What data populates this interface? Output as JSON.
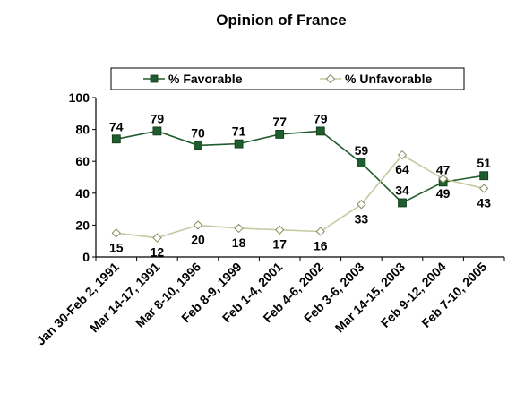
{
  "chart_data": {
    "type": "line",
    "title": "Opinion of France",
    "categories": [
      "Jan 30-Feb 2, 1991",
      "Mar 14-17, 1991",
      "Mar 8-10, 1996",
      "Feb 8-9, 1999",
      "Feb 1-4, 2001",
      "Feb 4-6, 2002",
      "Feb 3-6, 2003",
      "Mar 14-15, 2003",
      "Feb 9-12, 2004",
      "Feb 7-10, 2005"
    ],
    "series": [
      {
        "name": "% Favorable",
        "values": [
          74,
          79,
          70,
          71,
          77,
          79,
          59,
          34,
          47,
          51
        ],
        "color": "#1f5c2e",
        "marker": "square",
        "labels": "above"
      },
      {
        "name": "% Unfavorable",
        "values": [
          15,
          12,
          20,
          18,
          17,
          16,
          33,
          64,
          49,
          43
        ],
        "color": "#c8c8a0",
        "marker": "diamond",
        "labels": "below"
      }
    ],
    "ylim": [
      0,
      100
    ],
    "yticks": [
      0,
      20,
      40,
      60,
      80,
      100
    ],
    "xlabel": "",
    "ylabel": "",
    "grid": false,
    "legend_position": "top"
  }
}
